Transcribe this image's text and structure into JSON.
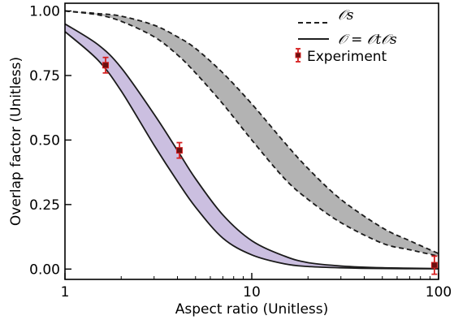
{
  "chart_data": {
    "type": "line",
    "xscale": "log",
    "xlim": [
      1,
      100
    ],
    "ylim": [
      -0.04,
      1.03
    ],
    "xlabel": "Aspect ratio (Unitless)",
    "ylabel": "Overlap factor (Unitless)",
    "x_ticks": [
      1,
      10,
      100
    ],
    "x_tick_labels": [
      "1",
      "10",
      "100"
    ],
    "y_ticks": [
      0.0,
      0.25,
      0.5,
      0.75,
      1.0
    ],
    "y_tick_labels": [
      "0.00",
      "0.25",
      "0.50",
      "0.75",
      "1.00"
    ],
    "grid": false,
    "legend_position": "top-right",
    "legend": [
      {
        "label": "𝒪s",
        "style": "dashed"
      },
      {
        "label": "𝒪 = 𝒪t𝒪s",
        "style": "solid"
      },
      {
        "label": "Experiment",
        "style": "marker"
      }
    ],
    "bands": [
      {
        "style": "dashed",
        "fill": "#b3b3b3",
        "x": [
          1,
          1.5,
          2,
          3,
          4,
          5,
          7,
          10,
          15,
          20,
          30,
          50,
          70,
          100
        ],
        "upper": [
          1.0,
          0.99,
          0.98,
          0.945,
          0.9,
          0.855,
          0.76,
          0.64,
          0.49,
          0.39,
          0.27,
          0.16,
          0.11,
          0.06
        ],
        "lower": [
          1.0,
          0.985,
          0.96,
          0.9,
          0.83,
          0.76,
          0.64,
          0.5,
          0.35,
          0.27,
          0.18,
          0.1,
          0.075,
          0.05
        ]
      },
      {
        "style": "solid",
        "fill": "#cbbfe0",
        "x": [
          1,
          1.5,
          2,
          3,
          4,
          5,
          7,
          10,
          15,
          20,
          30,
          50,
          100
        ],
        "upper": [
          0.95,
          0.87,
          0.78,
          0.6,
          0.46,
          0.35,
          0.21,
          0.11,
          0.05,
          0.025,
          0.012,
          0.005,
          0.002
        ],
        "lower": [
          0.92,
          0.81,
          0.69,
          0.48,
          0.34,
          0.24,
          0.12,
          0.055,
          0.02,
          0.01,
          0.005,
          0.002,
          0.001
        ]
      }
    ],
    "experiment": {
      "color": "#d62020",
      "points": [
        {
          "x": 1.65,
          "y": 0.79,
          "err": 0.03
        },
        {
          "x": 4.1,
          "y": 0.46,
          "err": 0.03
        },
        {
          "x": 95,
          "y": 0.015,
          "err": 0.035
        }
      ]
    }
  }
}
